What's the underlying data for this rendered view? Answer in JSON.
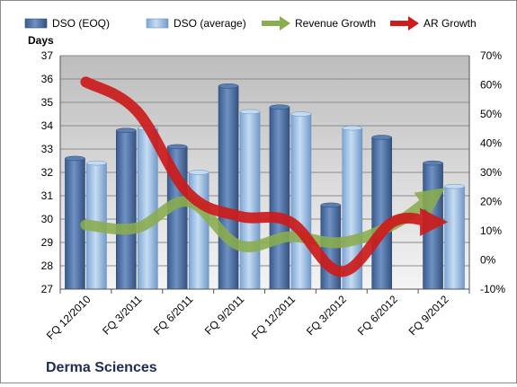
{
  "chart_data": {
    "type": "bar",
    "title": "",
    "company": "Derma Sciences",
    "ylabel": "Days",
    "y2label": "",
    "categories": [
      "FQ 12/2010",
      "FQ 3/2011",
      "FQ 6/2011",
      "FQ 9/2011",
      "FQ 12/2011",
      "FQ 3/2012",
      "FQ 6/2012",
      "FQ 9/2012"
    ],
    "ylim": [
      27,
      37
    ],
    "yticks": [
      27,
      28,
      29,
      30,
      31,
      32,
      33,
      34,
      35,
      36,
      37
    ],
    "y2lim": [
      -10,
      70
    ],
    "y2ticks": [
      "-10%",
      "0%",
      "10%",
      "20%",
      "30%",
      "40%",
      "50%",
      "60%",
      "70%"
    ],
    "y2tickvalues": [
      -10,
      0,
      10,
      20,
      30,
      40,
      50,
      60,
      70
    ],
    "series": [
      {
        "name": "DSO (EOQ)",
        "kind": "bar",
        "axis": "left",
        "color": "#4a6da0",
        "values": [
          32.6,
          33.8,
          33.1,
          35.7,
          34.8,
          30.6,
          33.5,
          32.4
        ]
      },
      {
        "name": "DSO (average)",
        "kind": "bar",
        "axis": "left",
        "color": "#a9c8e8",
        "values": [
          32.4,
          33.9,
          32.0,
          34.6,
          34.5,
          33.9,
          null,
          31.4
        ]
      },
      {
        "name": "Revenue Growth",
        "kind": "line",
        "axis": "right",
        "color": "#8aad4e",
        "values": [
          12,
          11,
          20,
          5,
          8,
          6,
          12,
          23
        ]
      },
      {
        "name": "AR Growth",
        "kind": "line",
        "axis": "right",
        "color": "#cc1c1c",
        "values": [
          61,
          51,
          23,
          15,
          13,
          -4,
          13,
          13
        ]
      }
    ],
    "grid": true,
    "legend_position": "top"
  }
}
